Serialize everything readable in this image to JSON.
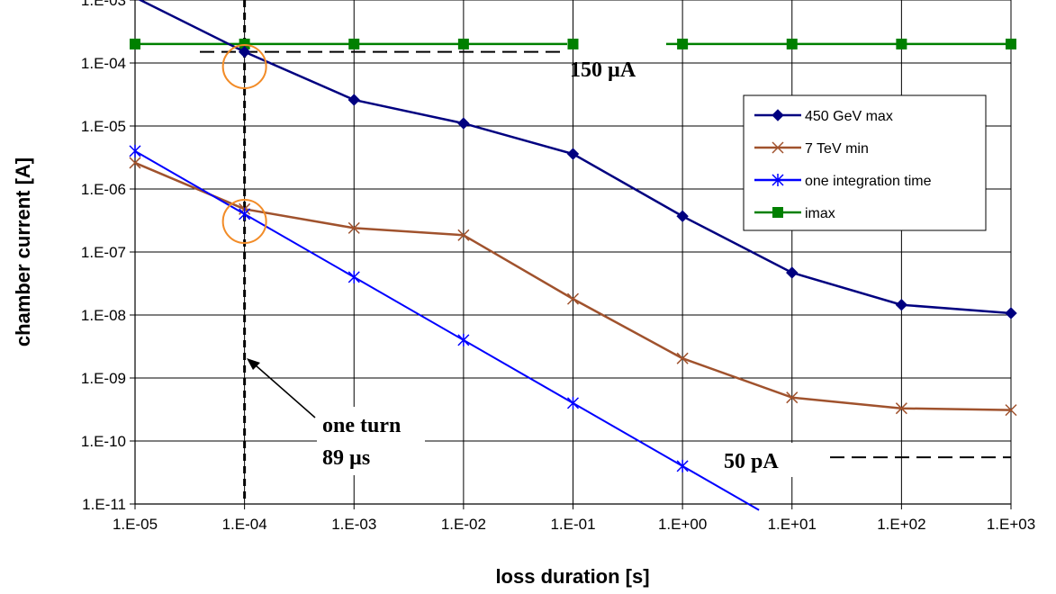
{
  "chart_data": {
    "type": "line",
    "title": "",
    "xlabel": "loss duration [s]",
    "ylabel": "chamber current [A]",
    "x_scale": "log",
    "y_scale": "log",
    "xlim": [
      1e-05,
      1000
    ],
    "ylim": [
      1e-11,
      0.001
    ],
    "grid": true,
    "legend_position": "top-right",
    "x_tick_labels": [
      "1.E-05",
      "1.E-04",
      "1.E-03",
      "1.E-02",
      "1.E-01",
      "1.E+00",
      "1.E+01",
      "1.E+02",
      "1.E+03"
    ],
    "y_tick_labels": [
      "1.E-03",
      "1.E-04",
      "1.E-05",
      "1.E-06",
      "1.E-07",
      "1.E-08",
      "1.E-09",
      "1.E-10",
      "1.E-11"
    ],
    "series": [
      {
        "name": "450 GeV max",
        "color": "#000080",
        "marker": "diamond",
        "x": [
          1e-05,
          0.0001,
          0.001,
          0.01,
          0.1,
          1,
          10,
          100,
          1000
        ],
        "values": [
          0.0011,
          0.00015,
          2.6e-05,
          1.1e-05,
          3.6e-06,
          3.7e-07,
          4.7e-08,
          1.45e-08,
          1.07e-08
        ],
        "first_marker_visible": false
      },
      {
        "name": "7 TeV min",
        "color": "#A0522D",
        "marker": "x",
        "x": [
          1e-05,
          0.0001,
          0.001,
          0.01,
          0.1,
          1,
          10,
          100,
          1000
        ],
        "values": [
          2.6e-06,
          4.8e-07,
          2.4e-07,
          1.85e-07,
          1.8e-08,
          2.05e-09,
          4.9e-10,
          3.3e-10,
          3.1e-10
        ]
      },
      {
        "name": "one integration time",
        "color": "#0000FF",
        "marker": "asterisk",
        "x": [
          1e-05,
          0.0001,
          0.001,
          0.01,
          0.1,
          1,
          5
        ],
        "values": [
          4e-06,
          4e-07,
          4e-08,
          4e-09,
          4e-10,
          4e-11,
          8e-12
        ],
        "marker_count": 6
      },
      {
        "name": "imax",
        "color": "#008000",
        "marker": "square",
        "x": [
          1e-05,
          0.0001,
          0.001,
          0.01,
          0.1,
          1,
          10,
          100,
          1000
        ],
        "values": [
          0.0002,
          0.0002,
          0.0002,
          0.0002,
          0.0002,
          0.0002,
          0.0002,
          0.0002,
          0.0002
        ]
      }
    ],
    "annotations": {
      "label_150uA": "150 µA",
      "label_50pA": "50 pA",
      "label_one_turn_line1": "one turn",
      "label_one_turn_line2": "89 µs",
      "current_150uA": 0.00015,
      "current_50pA": 5.5e-11,
      "one_turn_time": 0.0001
    }
  }
}
